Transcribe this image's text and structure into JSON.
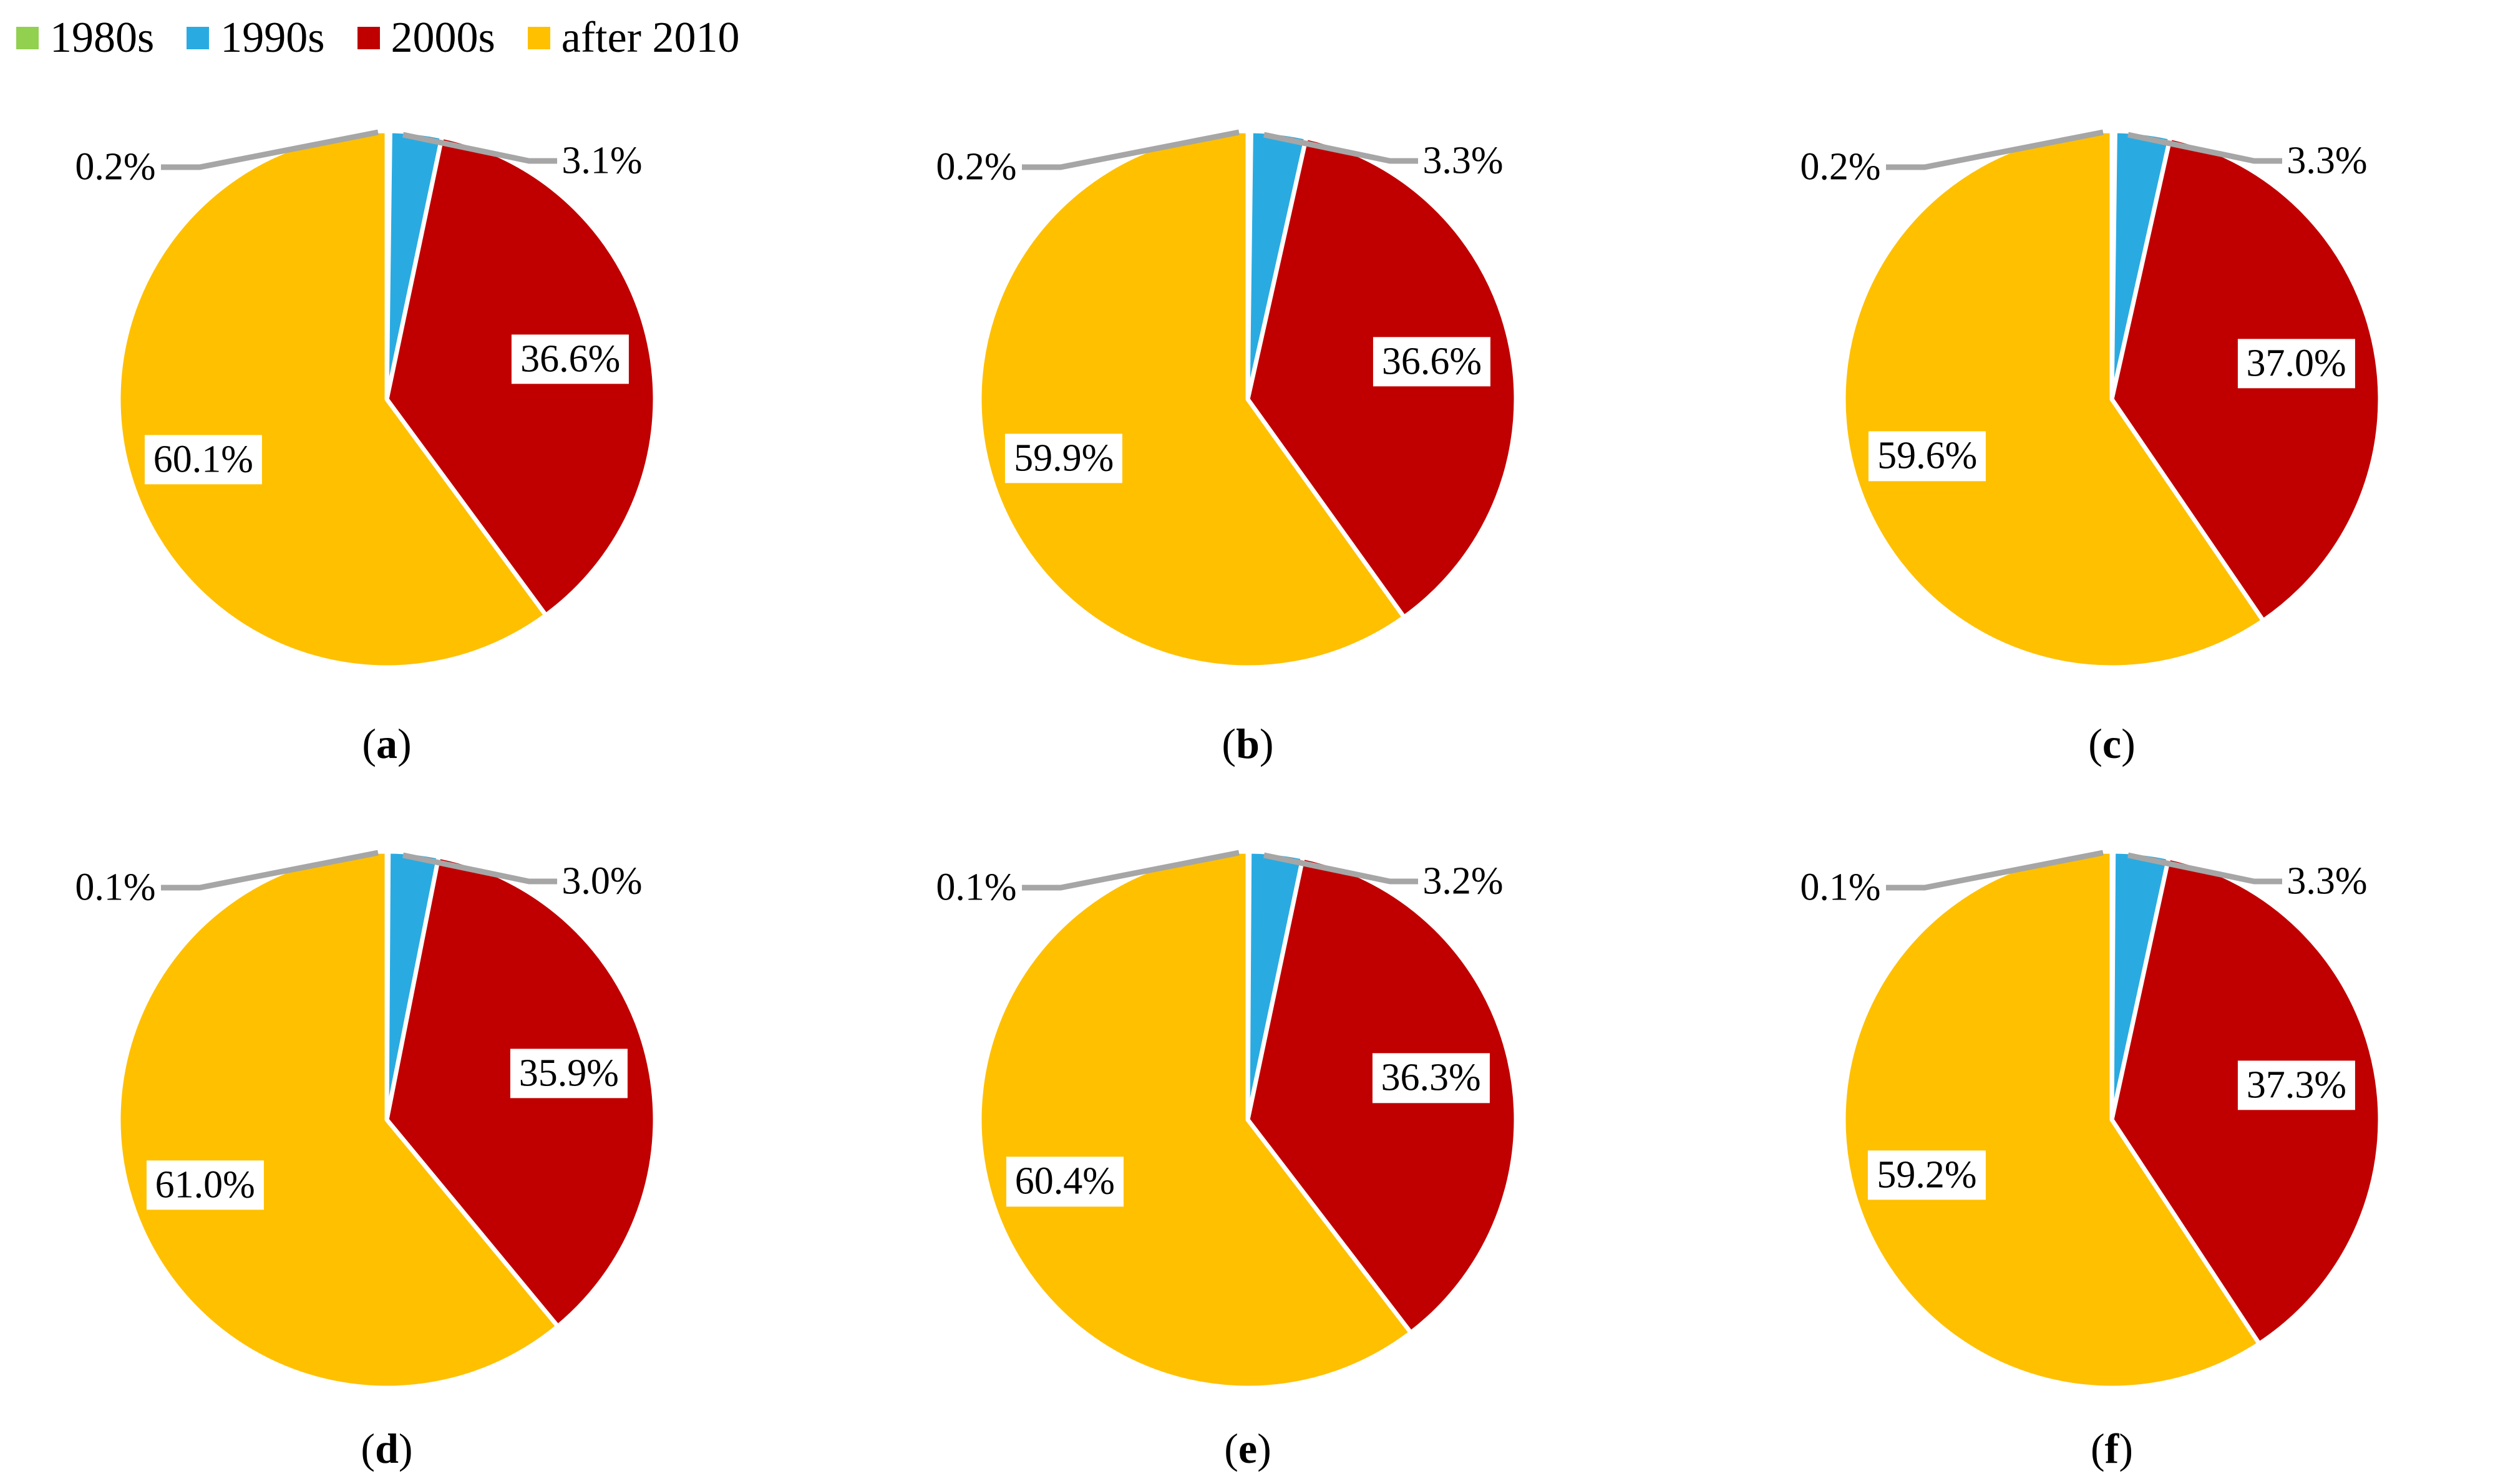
{
  "legend": {
    "position": "top-left",
    "items": [
      {
        "label": "1980s",
        "color": "#92D050"
      },
      {
        "label": "1990s",
        "color": "#29ABE2"
      },
      {
        "label": "2000s",
        "color": "#C00000"
      },
      {
        "label": "after 2010",
        "color": "#FFC000"
      }
    ]
  },
  "style_colors": {
    "leader_line": "#A6A6A6",
    "slice_border": "#FFFFFF",
    "label_text": "#000000",
    "label_background": "#FFFFFF"
  },
  "chart_data": [
    {
      "type": "pie",
      "caption": "a",
      "categories": [
        "1980s",
        "1990s",
        "2000s",
        "after 2010"
      ],
      "values": [
        0.2,
        3.1,
        36.6,
        60.1
      ],
      "labels": [
        "0.2%",
        "3.1%",
        "36.6%",
        "60.1%"
      ],
      "colors": [
        "#92D050",
        "#29ABE2",
        "#C00000",
        "#FFC000"
      ],
      "start_angle_deg": 0,
      "direction": "clockwise",
      "legend_position": "top-left"
    },
    {
      "type": "pie",
      "caption": "b",
      "categories": [
        "1980s",
        "1990s",
        "2000s",
        "after 2010"
      ],
      "values": [
        0.2,
        3.3,
        36.6,
        59.9
      ],
      "labels": [
        "0.2%",
        "3.3%",
        "36.6%",
        "59.9%"
      ],
      "colors": [
        "#92D050",
        "#29ABE2",
        "#C00000",
        "#FFC000"
      ],
      "start_angle_deg": 0,
      "direction": "clockwise",
      "legend_position": "top-left"
    },
    {
      "type": "pie",
      "caption": "c",
      "categories": [
        "1980s",
        "1990s",
        "2000s",
        "after 2010"
      ],
      "values": [
        0.2,
        3.3,
        37.0,
        59.6
      ],
      "labels": [
        "0.2%",
        "3.3%",
        "37.0%",
        "59.6%"
      ],
      "colors": [
        "#92D050",
        "#29ABE2",
        "#C00000",
        "#FFC000"
      ],
      "start_angle_deg": 0,
      "direction": "clockwise",
      "legend_position": "top-left"
    },
    {
      "type": "pie",
      "caption": "d",
      "categories": [
        "1980s",
        "1990s",
        "2000s",
        "after 2010"
      ],
      "values": [
        0.1,
        3.0,
        35.9,
        61.0
      ],
      "labels": [
        "0.1%",
        "3.0%",
        "35.9%",
        "61.0%"
      ],
      "colors": [
        "#92D050",
        "#29ABE2",
        "#C00000",
        "#FFC000"
      ],
      "start_angle_deg": 0,
      "direction": "clockwise",
      "legend_position": "top-left"
    },
    {
      "type": "pie",
      "caption": "e",
      "categories": [
        "1980s",
        "1990s",
        "2000s",
        "after 2010"
      ],
      "values": [
        0.1,
        3.2,
        36.3,
        60.4
      ],
      "labels": [
        "0.1%",
        "3.2%",
        "36.3%",
        "60.4%"
      ],
      "colors": [
        "#92D050",
        "#29ABE2",
        "#C00000",
        "#FFC000"
      ],
      "start_angle_deg": 0,
      "direction": "clockwise",
      "legend_position": "top-left"
    },
    {
      "type": "pie",
      "caption": "f",
      "categories": [
        "1980s",
        "1990s",
        "2000s",
        "after 2010"
      ],
      "values": [
        0.1,
        3.3,
        37.3,
        59.2
      ],
      "labels": [
        "0.1%",
        "3.3%",
        "37.3%",
        "59.2%"
      ],
      "colors": [
        "#92D050",
        "#29ABE2",
        "#C00000",
        "#FFC000"
      ],
      "start_angle_deg": 0,
      "direction": "clockwise",
      "legend_position": "top-left"
    }
  ]
}
